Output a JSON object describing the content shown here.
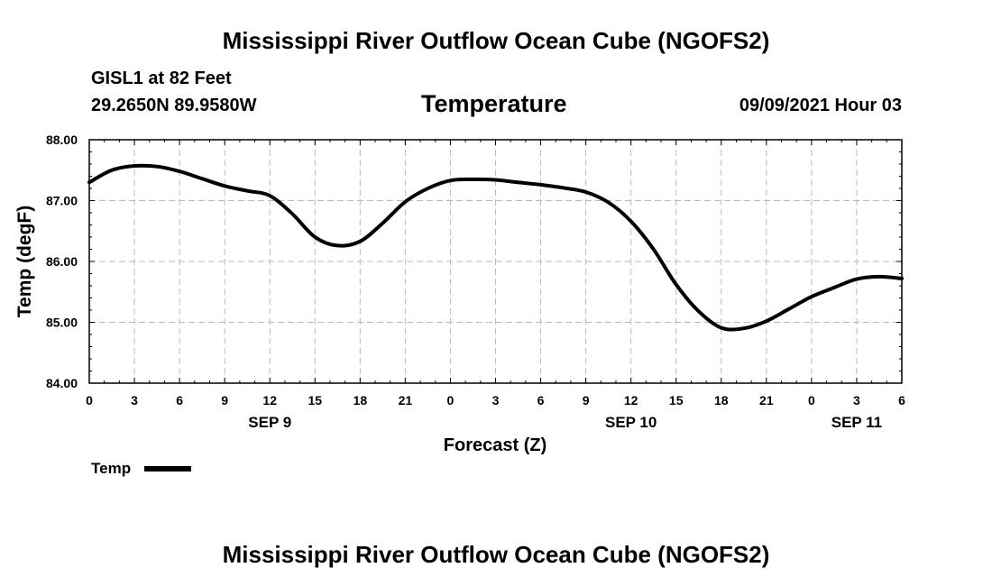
{
  "page": {
    "title_top": "Mississippi River Outflow Ocean Cube (NGOFS2)",
    "title_bottom": "Mississippi River Outflow Ocean Cube (NGOFS2)",
    "station": "GISL1 at 82 Feet",
    "coords": "29.2650N  89.9580W",
    "plot_title": "Temperature",
    "timestamp": "09/09/2021 Hour 03"
  },
  "chart_data": {
    "type": "line",
    "title": "Temperature",
    "xlabel": "Forecast (Z)",
    "ylabel": "Temp (degF)",
    "xlim": [
      0,
      54
    ],
    "ylim": [
      84.0,
      88.0
    ],
    "grid": true,
    "yticks": [
      84.0,
      85.0,
      86.0,
      87.0,
      88.0
    ],
    "ytick_labels": [
      "84.00",
      "85.00",
      "86.00",
      "87.00",
      "88.00"
    ],
    "xticks": [
      0,
      3,
      6,
      9,
      12,
      15,
      18,
      21,
      24,
      27,
      30,
      33,
      36,
      39,
      42,
      45,
      48,
      51,
      54
    ],
    "xtick_labels": [
      "0",
      "3",
      "6",
      "9",
      "12",
      "15",
      "18",
      "21",
      "0",
      "3",
      "6",
      "9",
      "12",
      "15",
      "18",
      "21",
      "0",
      "3",
      "6"
    ],
    "date_labels": [
      {
        "x": 12,
        "label": "SEP 9"
      },
      {
        "x": 36,
        "label": "SEP 10"
      },
      {
        "x": 51,
        "label": "SEP 11"
      }
    ],
    "legend": {
      "label": "Temp",
      "position": "bottom-left"
    },
    "series": [
      {
        "name": "Temp",
        "color": "#000000",
        "x": [
          0,
          1.5,
          3,
          4.5,
          6,
          7.5,
          9,
          10.5,
          12,
          13.5,
          15,
          16.5,
          18,
          19.5,
          21,
          22.5,
          24,
          25.5,
          27,
          28.5,
          30,
          31.5,
          33,
          34.5,
          36,
          37.5,
          39,
          40.5,
          42,
          43.5,
          45,
          46.5,
          48,
          49.5,
          51,
          52.5,
          54
        ],
        "values": [
          87.3,
          87.5,
          87.57,
          87.56,
          87.48,
          87.36,
          87.24,
          87.16,
          87.08,
          86.78,
          86.4,
          86.26,
          86.33,
          86.63,
          86.98,
          87.2,
          87.33,
          87.35,
          87.34,
          87.3,
          87.26,
          87.21,
          87.14,
          86.97,
          86.66,
          86.2,
          85.62,
          85.18,
          84.91,
          84.9,
          85.02,
          85.22,
          85.42,
          85.57,
          85.71,
          85.75,
          85.72
        ]
      }
    ]
  }
}
